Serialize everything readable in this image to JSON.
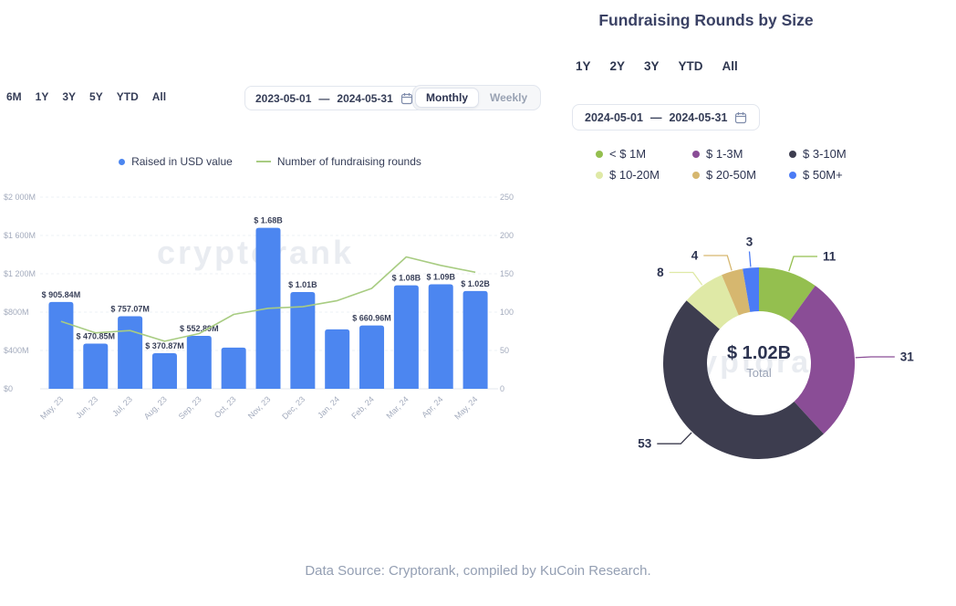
{
  "watermark": "cryptorank",
  "footer": {
    "text": "Data Source: Cryptorank, compiled by KuCoin Research."
  },
  "left_panel": {
    "range_filters": [
      "6M",
      "1Y",
      "3Y",
      "5Y",
      "YTD",
      "All"
    ],
    "date_range": {
      "start": "2023-05-01",
      "separator": "—",
      "end": "2024-05-31"
    },
    "granularity_toggle": {
      "options": [
        "Monthly",
        "Weekly"
      ],
      "selected": "Monthly"
    }
  },
  "right_panel": {
    "title": "Fundraising Rounds by Size",
    "range_filters": [
      "1Y",
      "2Y",
      "3Y",
      "YTD",
      "All"
    ],
    "date_range": {
      "start": "2024-05-01",
      "separator": "—",
      "end": "2024-05-31"
    }
  },
  "chart_data": [
    {
      "type": "bar",
      "subtype": "bar-line-combo",
      "values_unit": "USD millions (bars), count of rounds (line)",
      "categories": [
        "May, 23",
        "Jun, 23",
        "Jul, 23",
        "Aug, 23",
        "Sep, 23",
        "Oct, 23",
        "Nov, 23",
        "Dec, 23",
        "Jan, 24",
        "Feb, 24",
        "Mar, 24",
        "Apr, 24",
        "May, 24"
      ],
      "series": [
        {
          "name": "Raised in USD value",
          "type": "bar",
          "axis": "left",
          "color": "#4c86f0",
          "values": [
            905.84,
            470.85,
            757.07,
            370.87,
            552.89,
            430,
            1680,
            1010,
            620,
            660.96,
            1080,
            1090,
            1020
          ],
          "labels": [
            "$ 905.84M",
            "$ 470.85M",
            "$ 757.07M",
            "$ 370.87M",
            "$ 552.89M",
            null,
            "$ 1.68B",
            "$ 1.01B",
            null,
            "$ 660.96M",
            "$ 1.08B",
            "$ 1.09B",
            "$ 1.02B"
          ]
        },
        {
          "name": "Number of fundraising rounds",
          "type": "line",
          "axis": "right",
          "color": "#a8cc82",
          "values": [
            88,
            73,
            76,
            62,
            72,
            97,
            105,
            107,
            115,
            131,
            172,
            161,
            152
          ]
        }
      ],
      "left_axis": {
        "min": 0,
        "max": 2000,
        "ticks": [
          "$0",
          "$400M",
          "$800M",
          "$1 200M",
          "$1 600M",
          "$2 000M"
        ]
      },
      "right_axis": {
        "min": 0,
        "max": 250,
        "ticks": [
          "0",
          "50",
          "100",
          "150",
          "200",
          "250"
        ]
      },
      "grid": true,
      "legend_position": "top"
    },
    {
      "type": "pie",
      "subtype": "donut",
      "title": "Fundraising Rounds by Size",
      "center_value": "$ 1.02B",
      "center_label": "Total",
      "segments": [
        {
          "label": "< $ 1M",
          "value": 11,
          "color": "#94bf4f"
        },
        {
          "label": "$ 1-3M",
          "value": 31,
          "color": "#8a4d96"
        },
        {
          "label": "$ 3-10M",
          "value": 53,
          "color": "#3d3d4f"
        },
        {
          "label": "$ 10-20M",
          "value": 8,
          "color": "#dfe9a6"
        },
        {
          "label": "$ 20-50M",
          "value": 4,
          "color": "#d6b76f"
        },
        {
          "label": "$ 50M+",
          "value": 3,
          "color": "#4b7bf5"
        }
      ]
    }
  ]
}
